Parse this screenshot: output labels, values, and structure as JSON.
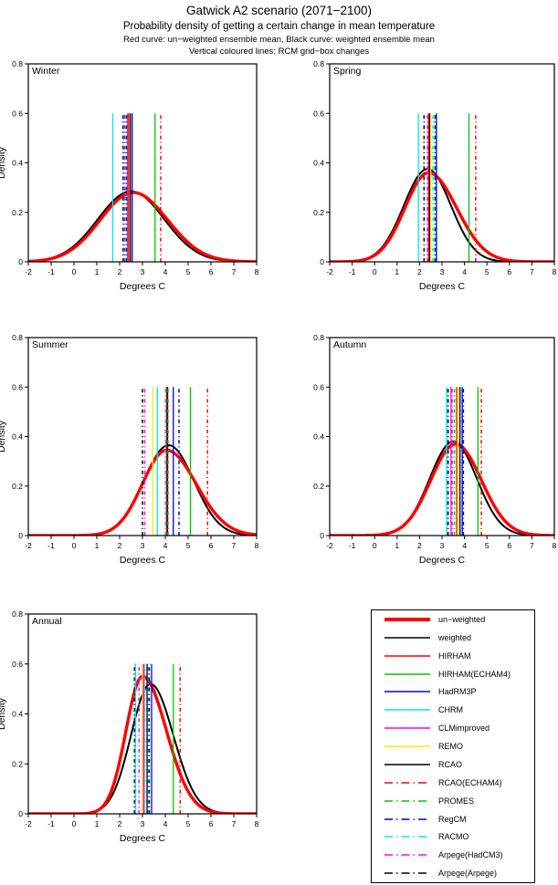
{
  "header": {
    "title": "Gatwick A2 scenario (2071−2100)",
    "subtitle": "Probability density of getting a certain change in mean temperature",
    "note1": "Red curve: un−weighted ensemble mean, Black curve: weighted ensemble mean",
    "note2": "Vertical coloured lines: RCM grid−box changes"
  },
  "colors": {
    "red": "#ff0000",
    "black": "#000000",
    "green": "#00c800",
    "blue": "#0000ff",
    "cyan": "#00e8e8",
    "magenta": "#ff00ff",
    "yellow": "#f2f200"
  },
  "legend": {
    "items": [
      {
        "label": "un−weighted",
        "color": "#ff0000",
        "style": "solid",
        "width": 4
      },
      {
        "label": "weighted",
        "color": "#000000",
        "style": "solid",
        "width": 1.4
      },
      {
        "label": "HIRHAM",
        "color": "#ff0000",
        "style": "solid",
        "width": 1.4
      },
      {
        "label": "HIRHAM(ECHAM4)",
        "color": "#00c800",
        "style": "solid",
        "width": 1.4
      },
      {
        "label": "HadRM3P",
        "color": "#0000ff",
        "style": "solid",
        "width": 1.4
      },
      {
        "label": "CHRM",
        "color": "#00e8e8",
        "style": "solid",
        "width": 1.4
      },
      {
        "label": "CLMimproved",
        "color": "#ff00ff",
        "style": "solid",
        "width": 1.4
      },
      {
        "label": "REMO",
        "color": "#f2f200",
        "style": "solid",
        "width": 1.4
      },
      {
        "label": "RCAO",
        "color": "#000000",
        "style": "solid",
        "width": 1.4
      },
      {
        "label": "RCAO(ECHAM4)",
        "color": "#ff0000",
        "style": "dashdot",
        "width": 1.4
      },
      {
        "label": "PROMES",
        "color": "#00c800",
        "style": "dashdot",
        "width": 1.4
      },
      {
        "label": "RegCM",
        "color": "#0000cc",
        "style": "dashdot",
        "width": 1.6
      },
      {
        "label": "RACMO",
        "color": "#00e8e8",
        "style": "dashdot",
        "width": 1.6
      },
      {
        "label": "Arpege(HadCM3)",
        "color": "#ff00ff",
        "style": "dashdot",
        "width": 1.4
      },
      {
        "label": "Arpege(Arpege)",
        "color": "#000000",
        "style": "dashdot",
        "width": 1.4
      }
    ]
  },
  "chart_data": [
    {
      "type": "line",
      "title": "Winter",
      "xlabel": "Degrees C",
      "ylabel": "Density",
      "xlim": [
        -2,
        8
      ],
      "ylim": [
        0,
        0.8
      ],
      "xticks": [
        -2,
        -1,
        0,
        1,
        2,
        3,
        4,
        5,
        6,
        7,
        8
      ],
      "yticks": [
        0,
        0.2,
        0.4,
        0.6,
        0.8
      ],
      "vline_top": 0.6,
      "show_ylabel": true,
      "curves": [
        {
          "name": "weighted",
          "color": "#000000",
          "width": 2,
          "mean": 2.5,
          "sigma_left": 1.45,
          "sigma_right": 1.45,
          "peak": 0.285
        },
        {
          "name": "un−weighted",
          "color": "#ff0000",
          "width": 3.4,
          "mean": 2.6,
          "sigma_left": 1.45,
          "sigma_right": 1.5,
          "peak": 0.28
        }
      ],
      "vlines": [
        {
          "model": "CHRM",
          "x": 1.7
        },
        {
          "model": "RegCM",
          "x": 2.15
        },
        {
          "model": "Arpege(HadCM3)",
          "x": 2.2
        },
        {
          "model": "PROMES",
          "x": 2.25
        },
        {
          "model": "RACMO",
          "x": 2.3
        },
        {
          "model": "Arpege(Arpege)",
          "x": 2.32
        },
        {
          "model": "CLMimproved",
          "x": 2.35
        },
        {
          "model": "HIRHAM",
          "x": 2.4
        },
        {
          "model": "REMO",
          "x": 2.45
        },
        {
          "model": "RCAO",
          "x": 2.47
        },
        {
          "model": "HadRM3P",
          "x": 2.55
        },
        {
          "model": "HIRHAM(ECHAM4)",
          "x": 3.55
        },
        {
          "model": "RCAO(ECHAM4)",
          "x": 3.8
        }
      ]
    },
    {
      "type": "line",
      "title": "Spring",
      "xlabel": "Degrees C",
      "ylabel": "Density",
      "xlim": [
        -2,
        8
      ],
      "ylim": [
        0,
        0.8
      ],
      "xticks": [
        -2,
        -1,
        0,
        1,
        2,
        3,
        4,
        5,
        6,
        7,
        8
      ],
      "yticks": [
        0,
        0.2,
        0.4,
        0.6,
        0.8
      ],
      "vline_top": 0.6,
      "show_ylabel": false,
      "curves": [
        {
          "name": "weighted",
          "color": "#000000",
          "width": 2,
          "mean": 2.35,
          "sigma_left": 1.05,
          "sigma_right": 1.05,
          "peak": 0.375
        },
        {
          "name": "un−weighted",
          "color": "#ff0000",
          "width": 3.4,
          "mean": 2.4,
          "sigma_left": 1.05,
          "sigma_right": 1.25,
          "peak": 0.36
        }
      ],
      "vlines": [
        {
          "model": "CHRM",
          "x": 1.95
        },
        {
          "model": "Arpege(Arpege)",
          "x": 2.2
        },
        {
          "model": "Arpege(HadCM3)",
          "x": 2.35
        },
        {
          "model": "CLMimproved",
          "x": 2.4
        },
        {
          "model": "HIRHAM",
          "x": 2.42
        },
        {
          "model": "RCAO",
          "x": 2.45
        },
        {
          "model": "REMO",
          "x": 2.5
        },
        {
          "model": "RACMO",
          "x": 2.6
        },
        {
          "model": "PROMES",
          "x": 2.68
        },
        {
          "model": "RegCM",
          "x": 2.72
        },
        {
          "model": "HadRM3P",
          "x": 2.75
        },
        {
          "model": "HIRHAM(ECHAM4)",
          "x": 4.2
        },
        {
          "model": "RCAO(ECHAM4)",
          "x": 4.5
        }
      ]
    },
    {
      "type": "line",
      "title": "Summer",
      "xlabel": "Degrees C",
      "ylabel": "Density",
      "xlim": [
        -2,
        8
      ],
      "ylim": [
        0,
        0.8
      ],
      "xticks": [
        -2,
        -1,
        0,
        1,
        2,
        3,
        4,
        5,
        6,
        7,
        8
      ],
      "yticks": [
        0,
        0.2,
        0.4,
        0.6,
        0.8
      ],
      "vline_top": 0.6,
      "show_ylabel": true,
      "curves": [
        {
          "name": "weighted",
          "color": "#000000",
          "width": 2,
          "mean": 4.15,
          "sigma_left": 1.1,
          "sigma_right": 1.1,
          "peak": 0.365
        },
        {
          "name": "un−weighted",
          "color": "#ff0000",
          "width": 3.4,
          "mean": 4.05,
          "sigma_left": 1.05,
          "sigma_right": 1.3,
          "peak": 0.345
        }
      ],
      "vlines": [
        {
          "model": "Arpege(Arpege)",
          "x": 3.0
        },
        {
          "model": "Arpege(HadCM3)",
          "x": 3.1
        },
        {
          "model": "REMO",
          "x": 3.45
        },
        {
          "model": "CHRM",
          "x": 3.65
        },
        {
          "model": "RACMO",
          "x": 4.0
        },
        {
          "model": "CLMimproved",
          "x": 4.05
        },
        {
          "model": "HIRHAM",
          "x": 4.07
        },
        {
          "model": "RCAO",
          "x": 4.1
        },
        {
          "model": "PROMES",
          "x": 4.12
        },
        {
          "model": "HadRM3P",
          "x": 4.35
        },
        {
          "model": "RegCM",
          "x": 4.6
        },
        {
          "model": "HIRHAM(ECHAM4)",
          "x": 5.1
        },
        {
          "model": "RCAO(ECHAM4)",
          "x": 5.85
        }
      ]
    },
    {
      "type": "line",
      "title": "Autumn",
      "xlabel": "Degrees C",
      "ylabel": "Density",
      "xlim": [
        -2,
        8
      ],
      "ylim": [
        0,
        0.8
      ],
      "xticks": [
        -2,
        -1,
        0,
        1,
        2,
        3,
        4,
        5,
        6,
        7,
        8
      ],
      "yticks": [
        0,
        0.2,
        0.4,
        0.6,
        0.8
      ],
      "vline_top": 0.6,
      "show_ylabel": false,
      "curves": [
        {
          "name": "weighted",
          "color": "#000000",
          "width": 2,
          "mean": 3.5,
          "sigma_left": 1.05,
          "sigma_right": 1.05,
          "peak": 0.38
        },
        {
          "name": "un−weighted",
          "color": "#ff0000",
          "width": 3.4,
          "mean": 3.6,
          "sigma_left": 1.1,
          "sigma_right": 1.15,
          "peak": 0.37
        }
      ],
      "vlines": [
        {
          "model": "CHRM",
          "x": 3.2
        },
        {
          "model": "RACMO",
          "x": 3.22
        },
        {
          "model": "Arpege(Arpege)",
          "x": 3.27
        },
        {
          "model": "CLMimproved",
          "x": 3.4
        },
        {
          "model": "Arpege(HadCM3)",
          "x": 3.45
        },
        {
          "model": "PROMES",
          "x": 3.55
        },
        {
          "model": "HIRHAM",
          "x": 3.65
        },
        {
          "model": "REMO",
          "x": 3.7
        },
        {
          "model": "RCAO",
          "x": 3.8
        },
        {
          "model": "HadRM3P",
          "x": 3.9
        },
        {
          "model": "RegCM",
          "x": 3.95
        },
        {
          "model": "HIRHAM(ECHAM4)",
          "x": 4.6
        },
        {
          "model": "RCAO(ECHAM4)",
          "x": 4.75
        }
      ]
    },
    {
      "type": "line",
      "title": "Annual",
      "xlabel": "Degrees C",
      "ylabel": "Density",
      "xlim": [
        -2,
        8
      ],
      "ylim": [
        0,
        0.8
      ],
      "xticks": [
        -2,
        -1,
        0,
        1,
        2,
        3,
        4,
        5,
        6,
        7,
        8
      ],
      "yticks": [
        0,
        0.2,
        0.4,
        0.6,
        0.8
      ],
      "vline_top": 0.6,
      "show_ylabel": true,
      "curves": [
        {
          "name": "weighted",
          "color": "#000000",
          "width": 2,
          "mean": 3.35,
          "sigma_left": 0.85,
          "sigma_right": 1.0,
          "peak": 0.52
        },
        {
          "name": "un−weighted",
          "color": "#ff0000",
          "width": 3.4,
          "mean": 3.0,
          "sigma_left": 0.72,
          "sigma_right": 1.05,
          "peak": 0.55
        }
      ],
      "vlines": [
        {
          "model": "Arpege(Arpege)",
          "x": 2.65
        },
        {
          "model": "CHRM",
          "x": 2.7
        },
        {
          "model": "Arpege(HadCM3)",
          "x": 2.85
        },
        {
          "model": "REMO",
          "x": 3.0
        },
        {
          "model": "HIRHAM",
          "x": 3.05
        },
        {
          "model": "CLMimproved",
          "x": 3.07
        },
        {
          "model": "RACMO",
          "x": 3.1
        },
        {
          "model": "RCAO",
          "x": 3.2
        },
        {
          "model": "PROMES",
          "x": 3.25
        },
        {
          "model": "RegCM",
          "x": 3.3
        },
        {
          "model": "HadRM3P",
          "x": 3.4
        },
        {
          "model": "HIRHAM(ECHAM4)",
          "x": 4.35
        },
        {
          "model": "RCAO(ECHAM4)",
          "x": 4.65
        }
      ]
    }
  ]
}
